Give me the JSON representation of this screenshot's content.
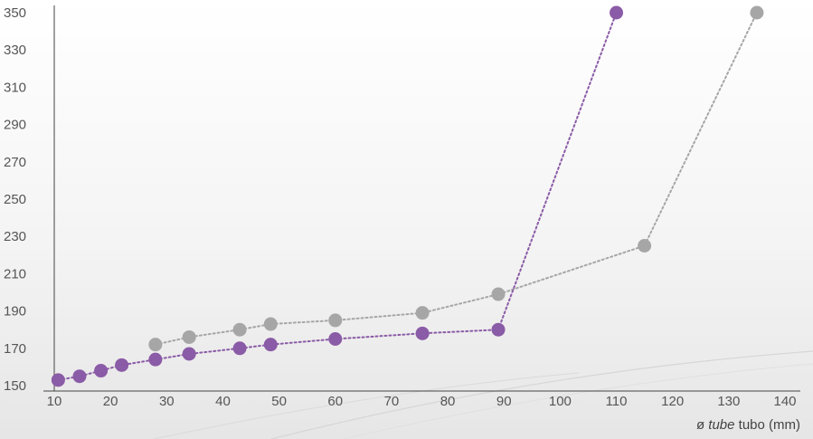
{
  "chart_data": {
    "type": "line",
    "xlabel_parts": [
      "ø",
      "tube",
      "tubo (mm)"
    ],
    "xlim": [
      10,
      140
    ],
    "ylim": [
      150,
      350
    ],
    "xticks": [
      10,
      20,
      30,
      40,
      50,
      60,
      70,
      80,
      90,
      100,
      110,
      120,
      130,
      140
    ],
    "yticks": [
      150,
      170,
      190,
      210,
      230,
      250,
      270,
      290,
      310,
      330,
      350
    ],
    "grid": false,
    "line_style": "dotted",
    "series": [
      {
        "color": "#a6a6a6",
        "points": [
          [
            28,
            172
          ],
          [
            34,
            176
          ],
          [
            43,
            180
          ],
          [
            48.5,
            183
          ],
          [
            60,
            185
          ],
          [
            75.5,
            189
          ],
          [
            89,
            199
          ],
          [
            115,
            225
          ],
          [
            135,
            350
          ]
        ]
      },
      {
        "color": "#8a5ba6",
        "points": [
          [
            10.7,
            153
          ],
          [
            14.5,
            155
          ],
          [
            18.3,
            158
          ],
          [
            22,
            161
          ],
          [
            28,
            164
          ],
          [
            34,
            167
          ],
          [
            43,
            170
          ],
          [
            48.5,
            172
          ],
          [
            60,
            175
          ],
          [
            75.5,
            178
          ],
          [
            89,
            180
          ],
          [
            110,
            350
          ]
        ]
      }
    ]
  }
}
